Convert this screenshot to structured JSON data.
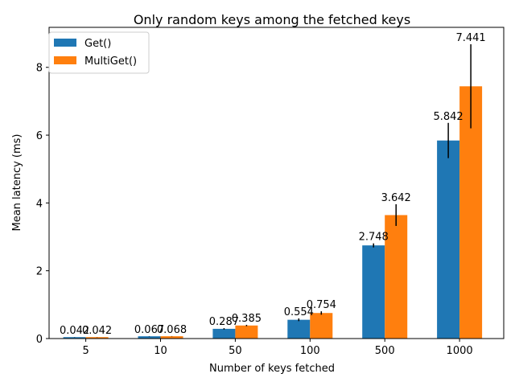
{
  "chart_data": {
    "type": "bar",
    "title": "Only random keys among the fetched keys",
    "xlabel": "Number of keys fetched",
    "ylabel": "Mean latency (ms)",
    "categories": [
      "5",
      "10",
      "50",
      "100",
      "500",
      "1000"
    ],
    "ylim": [
      0,
      9.18
    ],
    "yticks": [
      0,
      2,
      4,
      6,
      8
    ],
    "grid": false,
    "legend_position": "top-left",
    "series": [
      {
        "name": "Get()",
        "color": "#1f77b4",
        "values": [
          0.042,
          0.067,
          0.287,
          0.554,
          2.748,
          5.842
        ],
        "labels": [
          "0.042",
          "0.067",
          "0.287",
          "0.554",
          "2.748",
          "5.842"
        ],
        "error": [
          0.003,
          0.005,
          0.02,
          0.04,
          0.06,
          0.52
        ]
      },
      {
        "name": "MultiGet()",
        "color": "#ff7f0e",
        "values": [
          0.042,
          0.068,
          0.385,
          0.754,
          3.642,
          7.441
        ],
        "labels": [
          "0.042",
          "0.068",
          "0.385",
          "0.754",
          "3.642",
          "7.441"
        ],
        "error": [
          0.003,
          0.005,
          0.02,
          0.05,
          0.32,
          1.24
        ]
      }
    ]
  }
}
